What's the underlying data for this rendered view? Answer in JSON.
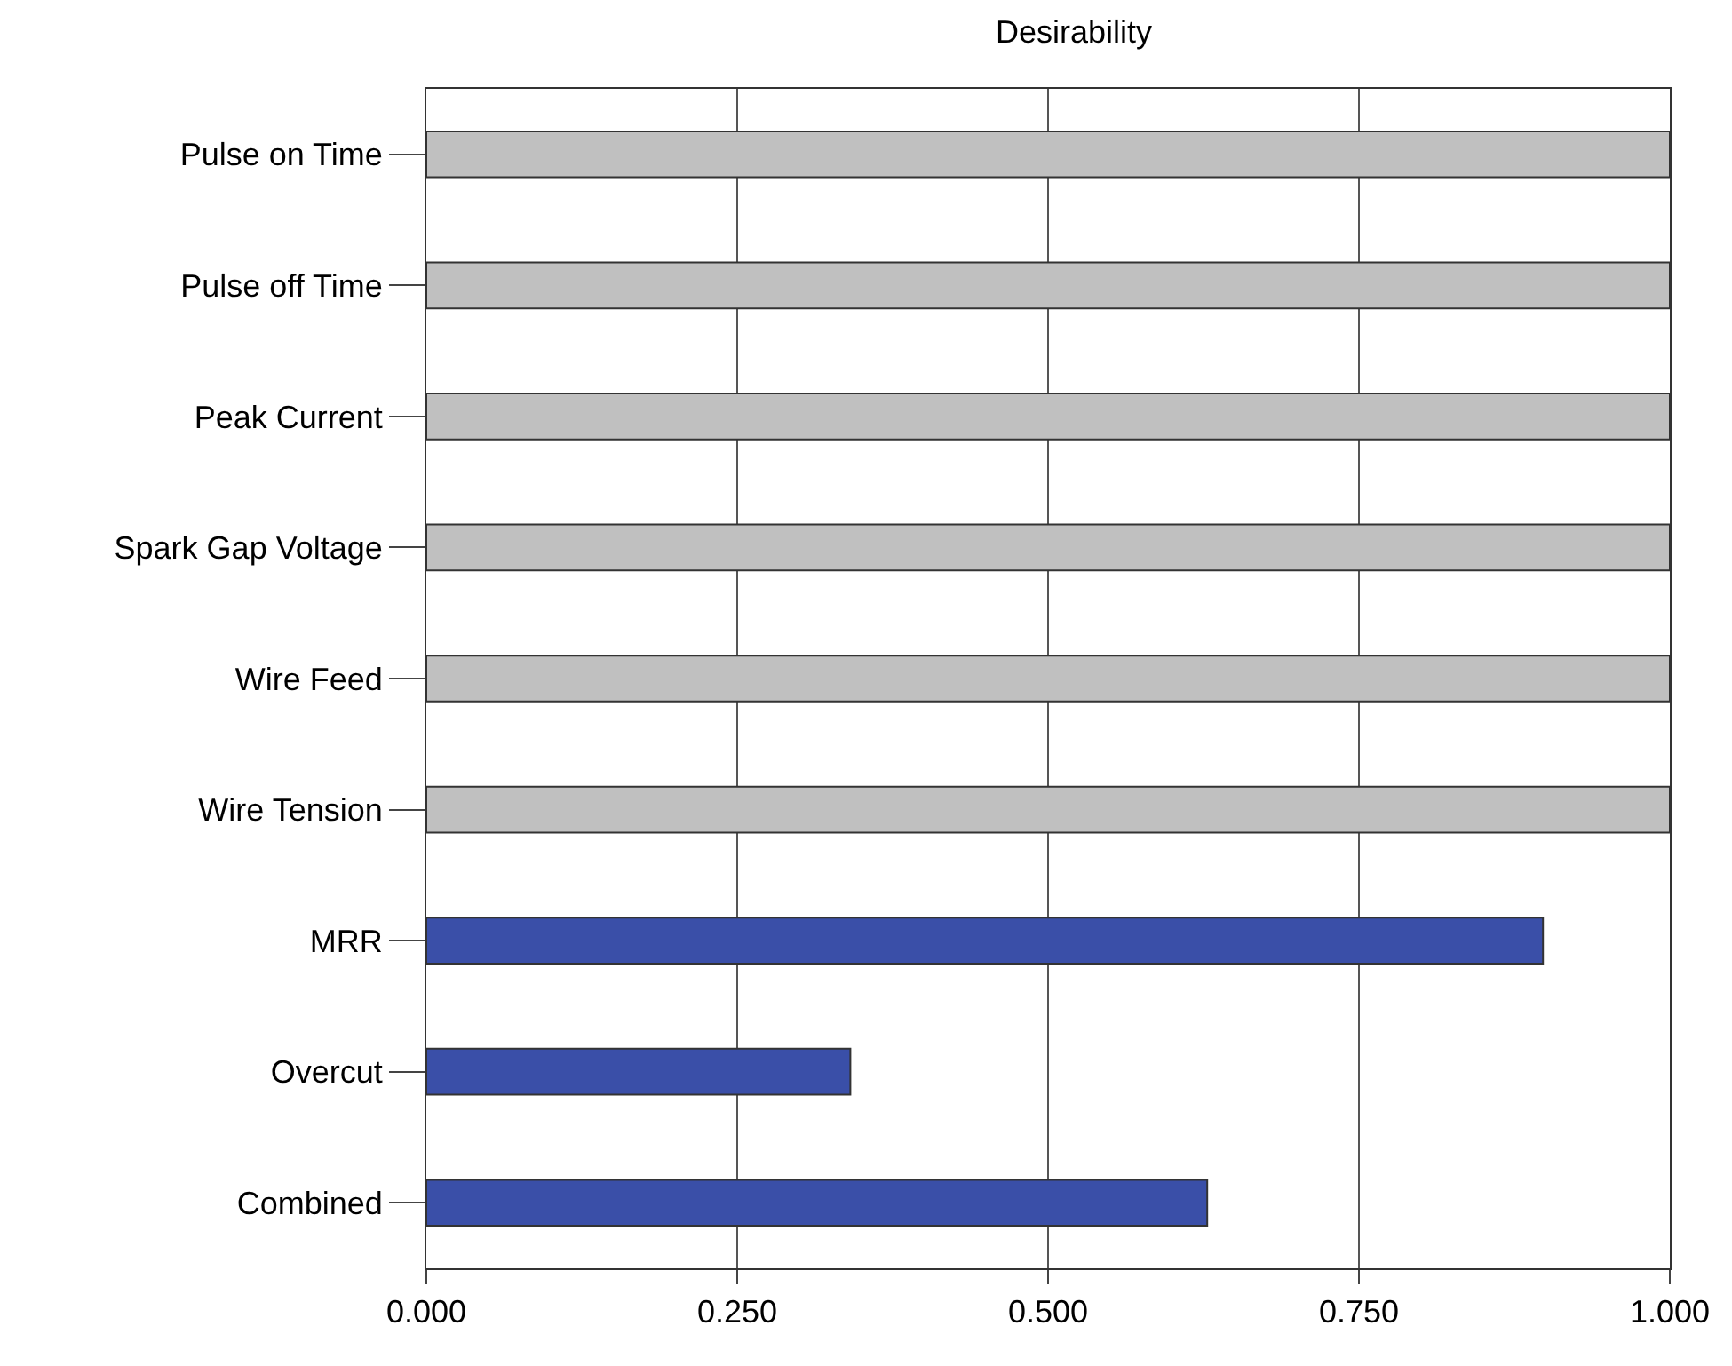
{
  "chart_data": {
    "type": "bar",
    "orientation": "horizontal",
    "title": "Desirability",
    "categories": [
      "Pulse on Time",
      "Pulse off Time",
      "Peak Current",
      "Spark Gap Voltage",
      "Wire Feed",
      "Wire Tension",
      "MRR",
      "Overcut",
      "Combined"
    ],
    "values": [
      1,
      1,
      1,
      1,
      1,
      1,
      0.898,
      0.341,
      0.628
    ],
    "colors": [
      "#c0c0c0",
      "#c0c0c0",
      "#c0c0c0",
      "#c0c0c0",
      "#c0c0c0",
      "#c0c0c0",
      "#3a4fa8",
      "#3a4fa8",
      "#3a4fa8"
    ],
    "xlim": [
      0,
      1
    ],
    "xticks": [
      {
        "value": 0,
        "label": "0.000"
      },
      {
        "value": 0.25,
        "label": "0.250"
      },
      {
        "value": 0.5,
        "label": "0.500"
      },
      {
        "value": 0.75,
        "label": "0.750"
      },
      {
        "value": 1,
        "label": "1.000"
      }
    ],
    "grid": "x"
  }
}
